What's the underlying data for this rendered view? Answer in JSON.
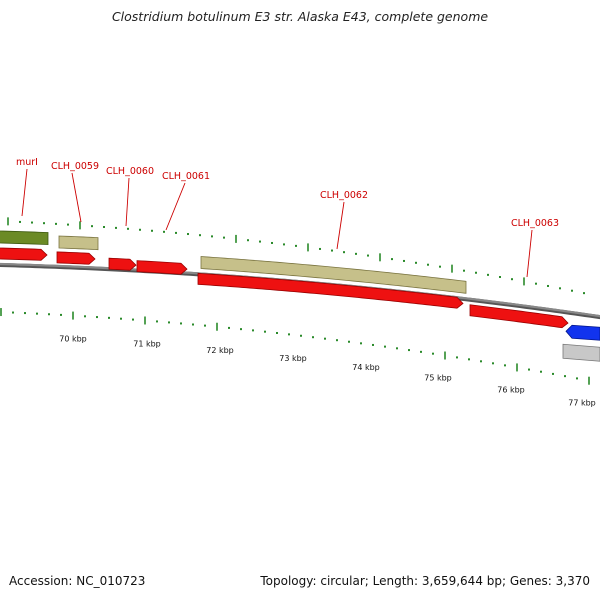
{
  "title": "Clostridium botulinum E3 str. Alaska E43, complete genome",
  "footer": {
    "accession": "Accession: NC_010723",
    "summary": "Topology: circular; Length: 3,659,644 bp; Genes: 3,370"
  },
  "colors": {
    "cds_forward": "#ee1111",
    "gene_olive": "#c6c08a",
    "gene_dark_olive": "#6b8a25",
    "reverse_blue": "#1133ee",
    "reverse_grey": "#c8c8c8",
    "backbone": "#888888",
    "tick": "#2a8a2a",
    "label": "#cc0000"
  },
  "gene_labels": [
    "murI",
    "CLH_0059",
    "CLH_0060",
    "CLH_0061",
    "CLH_0062",
    "CLH_0063"
  ],
  "scale_labels": [
    "70 kbp",
    "71 kbp",
    "72 kbp",
    "73 kbp",
    "74 kbp",
    "75 kbp",
    "76 kbp",
    "77 kbp"
  ]
}
